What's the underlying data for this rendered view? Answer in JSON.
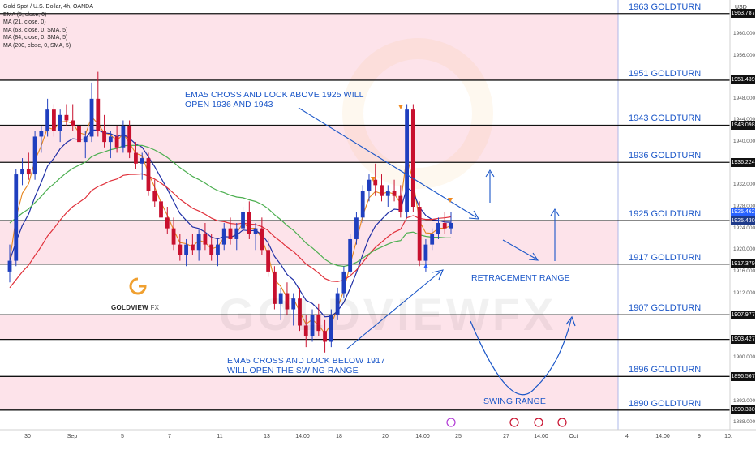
{
  "symbol": "Gold Spot / U.S. Dollar, 4h, OANDA",
  "currency": "USD",
  "indicators": [
    "EMA (5, close, 0)",
    "MA (21, close, 0)",
    "MA (63, close, 0, SMA, 5)",
    "MA (84, close, 0, SMA, 5)",
    "MA (200, close, 0, SMA, 5)"
  ],
  "brand": {
    "name": "GOLDVIEW",
    "suffix": "FX",
    "watermark": "GOLDVIEWFX",
    "color": "#f0a030"
  },
  "annotations": {
    "top": "EMA5 CROSS AND LOCK ABOVE 1925 WILL\nOPEN 1936 AND 1943",
    "bottom": "EMA5 CROSS AND LOCK BELOW 1917\nWILL OPEN THE SWING RANGE",
    "retracement": "RETRACEMENT RANGE",
    "swing": "SWING RANGE"
  },
  "colors": {
    "annotation": "#1a56c8",
    "zone": "#fde3ea",
    "bull": "#1f3fbf",
    "bear": "#c8102e",
    "ema5": "#e6861f",
    "ma21": "#1f2fa6",
    "ma63": "#e0303a",
    "ma84": "#4caf50"
  },
  "chart_data": {
    "type": "candlestick",
    "ylim": [
      1887,
      1966
    ],
    "levels": [
      {
        "label": "1963 GOLDTURN",
        "price": 1963.787,
        "tag": "1963.787"
      },
      {
        "label": "1951 GOLDTURN",
        "price": 1951.439,
        "tag": "1951.439"
      },
      {
        "label": "1943 GOLDTURN",
        "price": 1943.098,
        "tag": "1943.098"
      },
      {
        "label": "1936 GOLDTURN",
        "price": 1936.224,
        "tag": "1936.224"
      },
      {
        "label": "1925 GOLDTURN",
        "price": 1925.43,
        "tag": "1925.430"
      },
      {
        "label": "1917 GOLDTURN",
        "price": 1917.379,
        "tag": "1917.379"
      },
      {
        "label": "1907 GOLDTURN",
        "price": 1907.977,
        "tag": "1907.977"
      },
      {
        "label": "",
        "price": 1903.427,
        "tag": "1903.427"
      },
      {
        "label": "1896 GOLDTURN",
        "price": 1896.567,
        "tag": "1896.567"
      },
      {
        "label": "1890 GOLDTURN",
        "price": 1890.33,
        "tag": "1890.330"
      }
    ],
    "zones": [
      [
        1951.439,
        1963.787
      ],
      [
        1936.224,
        1943.098
      ],
      [
        1917.379,
        1925.43
      ],
      [
        1903.427,
        1907.977
      ],
      [
        1890.33,
        1896.567
      ]
    ],
    "current_price_tag": "1925.462",
    "yticks": [
      "1960.000",
      "1956.000",
      "1948.000",
      "1944.000",
      "1940.000",
      "1932.000",
      "1928.000",
      "1924.000",
      "1920.000",
      "1916.000",
      "1912.000",
      "1900.000",
      "1892.000",
      "1888.000"
    ],
    "xticks": [
      "30",
      "Sep",
      "5",
      "7",
      "11",
      "13",
      "14:00",
      "18",
      "20",
      "14:00",
      "25",
      "27",
      "14:00",
      "Oct",
      "4",
      "14:00",
      "9",
      "10:"
    ],
    "candles": [
      [
        1916,
        1921,
        1914,
        1918
      ],
      [
        1918,
        1935,
        1917,
        1934
      ],
      [
        1934,
        1937,
        1932,
        1935
      ],
      [
        1935,
        1938,
        1933,
        1934
      ],
      [
        1934,
        1942,
        1933,
        1941
      ],
      [
        1941,
        1943,
        1938,
        1942
      ],
      [
        1942,
        1948,
        1941,
        1946
      ],
      [
        1946,
        1947,
        1941,
        1942
      ],
      [
        1942,
        1946,
        1940,
        1945
      ],
      [
        1945,
        1947,
        1943,
        1944
      ],
      [
        1944,
        1947,
        1942,
        1943
      ],
      [
        1943,
        1946,
        1939,
        1940
      ],
      [
        1940,
        1942,
        1937,
        1941
      ],
      [
        1941,
        1951,
        1940,
        1948
      ],
      [
        1948,
        1953,
        1941,
        1942
      ],
      [
        1942,
        1945,
        1939,
        1940
      ],
      [
        1940,
        1942,
        1937,
        1941
      ],
      [
        1941,
        1943,
        1938,
        1939
      ],
      [
        1939,
        1944,
        1938,
        1943
      ],
      [
        1943,
        1944,
        1937,
        1938
      ],
      [
        1938,
        1940,
        1935,
        1936
      ],
      [
        1936,
        1938,
        1933,
        1937
      ],
      [
        1937,
        1938,
        1930,
        1931
      ],
      [
        1931,
        1933,
        1928,
        1929
      ],
      [
        1929,
        1931,
        1925,
        1926
      ],
      [
        1926,
        1928,
        1923,
        1924
      ],
      [
        1924,
        1926,
        1920,
        1921
      ],
      [
        1921,
        1923,
        1918,
        1919
      ],
      [
        1919,
        1922,
        1917,
        1921
      ],
      [
        1921,
        1923,
        1919,
        1920
      ],
      [
        1920,
        1924,
        1918,
        1923
      ],
      [
        1923,
        1925,
        1920,
        1921
      ],
      [
        1921,
        1923,
        1918,
        1919
      ],
      [
        1919,
        1922,
        1917,
        1921
      ],
      [
        1921,
        1925,
        1920,
        1924
      ],
      [
        1924,
        1926,
        1921,
        1922
      ],
      [
        1922,
        1925,
        1920,
        1924
      ],
      [
        1924,
        1928,
        1923,
        1927
      ],
      [
        1927,
        1929,
        1922,
        1923
      ],
      [
        1923,
        1925,
        1920,
        1924
      ],
      [
        1924,
        1926,
        1919,
        1920
      ],
      [
        1920,
        1922,
        1915,
        1916
      ],
      [
        1916,
        1917,
        1909,
        1910
      ],
      [
        1910,
        1913,
        1907,
        1912
      ],
      [
        1912,
        1914,
        1908,
        1909
      ],
      [
        1909,
        1912,
        1906,
        1911
      ],
      [
        1911,
        1913,
        1905,
        1906
      ],
      [
        1906,
        1908,
        1902,
        1904
      ],
      [
        1904,
        1909,
        1903,
        1908
      ],
      [
        1908,
        1910,
        1904,
        1905
      ],
      [
        1905,
        1907,
        1901,
        1903
      ],
      [
        1903,
        1909,
        1902,
        1908
      ],
      [
        1908,
        1913,
        1907,
        1912
      ],
      [
        1912,
        1917,
        1911,
        1916
      ],
      [
        1916,
        1923,
        1915,
        1922
      ],
      [
        1922,
        1927,
        1921,
        1926
      ],
      [
        1926,
        1932,
        1925,
        1931
      ],
      [
        1931,
        1934,
        1929,
        1933
      ],
      [
        1933,
        1936,
        1930,
        1932
      ],
      [
        1932,
        1934,
        1929,
        1930
      ],
      [
        1930,
        1932,
        1928,
        1931
      ],
      [
        1931,
        1933,
        1929,
        1930
      ],
      [
        1930,
        1932,
        1926,
        1927
      ],
      [
        1927,
        1947,
        1926,
        1946
      ],
      [
        1946,
        1947,
        1927,
        1928
      ],
      [
        1928,
        1929,
        1917,
        1918
      ],
      [
        1918,
        1922,
        1916,
        1921
      ],
      [
        1921,
        1924,
        1920,
        1923
      ],
      [
        1923,
        1926,
        1922,
        1925
      ],
      [
        1925,
        1927,
        1923,
        1924
      ],
      [
        1924,
        1927,
        1923,
        1925
      ]
    ]
  }
}
